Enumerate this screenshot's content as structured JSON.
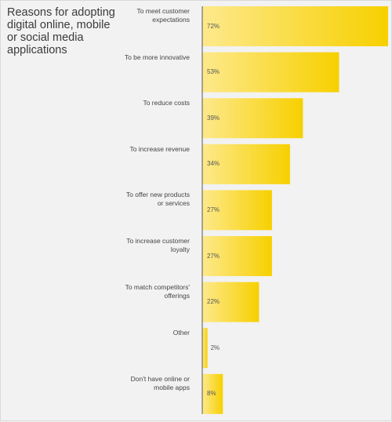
{
  "chart_data": {
    "type": "bar",
    "orientation": "horizontal",
    "title": "Reasons for adopting\ndigital online, mobile\nor social media\napplications",
    "xlabel": "",
    "ylabel": "",
    "xlim": [
      0,
      72
    ],
    "grid": false,
    "categories": [
      "To meet customer\nexpectations",
      "To be more innovative",
      "To reduce costs",
      "To increase revenue",
      "To offer new products\nor services",
      "To increase customer\nloyalty",
      "To match competitors'\nofferings",
      "Other",
      "Don't have online or\nmobile apps"
    ],
    "values": [
      72,
      53,
      39,
      34,
      27,
      27,
      22,
      2,
      8
    ],
    "value_labels": [
      "72%",
      "53%",
      "39%",
      "34%",
      "27%",
      "27%",
      "22%",
      "2%",
      "8%"
    ],
    "colors": {
      "bar_start": "#fde98c",
      "bar_end": "#f7d000",
      "axis": "#555555"
    }
  }
}
